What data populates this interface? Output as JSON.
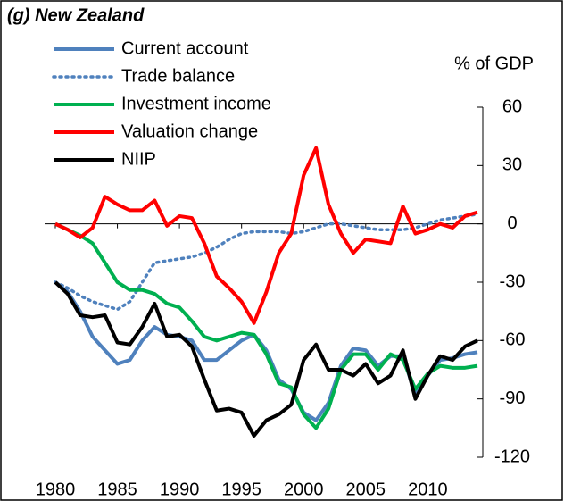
{
  "chart_data": {
    "type": "line",
    "title": "(g) New Zealand",
    "y_label": "% of GDP",
    "x": [
      1980,
      1981,
      1982,
      1983,
      1984,
      1985,
      1986,
      1987,
      1988,
      1989,
      1990,
      1991,
      1992,
      1993,
      1994,
      1995,
      1996,
      1997,
      1998,
      1999,
      2000,
      2001,
      2002,
      2003,
      2004,
      2005,
      2006,
      2007,
      2008,
      2009,
      2010,
      2011,
      2012,
      2013,
      2014
    ],
    "xlim": [
      1980,
      2014
    ],
    "xticks": [
      1980,
      1985,
      1990,
      1995,
      2000,
      2005,
      2010
    ],
    "ylim": [
      -120,
      60
    ],
    "yticks": [
      60,
      30,
      0,
      -30,
      -60,
      -90,
      -120
    ],
    "legend": "upper left",
    "series": [
      {
        "name": "Current account",
        "color": "#4f81bd",
        "style": "solid",
        "values": [
          -30,
          -35,
          -45,
          -58,
          -65,
          -72,
          -70,
          -60,
          -53,
          -57,
          -58,
          -60,
          -70,
          -70,
          -65,
          -60,
          -57,
          -65,
          -80,
          -85,
          -97,
          -101,
          -92,
          -73,
          -64,
          -65,
          -73,
          -68,
          -68,
          -88,
          -78,
          -70,
          -69,
          -67,
          -66
        ]
      },
      {
        "name": "Trade balance",
        "color": "#4f81bd",
        "style": "dotted",
        "values": [
          -30,
          -33,
          -37,
          -40,
          -42,
          -44,
          -40,
          -30,
          -20,
          -19,
          -18,
          -17,
          -15,
          -12,
          -8,
          -5,
          -4,
          -4,
          -4,
          -5,
          -4,
          -2,
          0,
          0,
          -1,
          -2,
          -3,
          -3,
          -3,
          -2,
          0,
          2,
          3,
          4,
          5
        ]
      },
      {
        "name": "Investment income",
        "color": "#00b050",
        "style": "solid",
        "values": [
          0,
          -3,
          -6,
          -10,
          -20,
          -30,
          -34,
          -34,
          -36,
          -41,
          -43,
          -50,
          -58,
          -60,
          -58,
          -56,
          -57,
          -67,
          -82,
          -84,
          -98,
          -105,
          -95,
          -75,
          -67,
          -67,
          -75,
          -67,
          -70,
          -85,
          -77,
          -73,
          -74,
          -74,
          -73
        ]
      },
      {
        "name": "Valuation change",
        "color": "#ff0000",
        "style": "solid",
        "values": [
          0,
          -3,
          -7,
          -2,
          14,
          10,
          7,
          7,
          12,
          -1,
          4,
          3,
          -10,
          -27,
          -33,
          -40,
          -51,
          -35,
          -15,
          -5,
          25,
          39,
          10,
          -5,
          -15,
          -8,
          -9,
          -10,
          9,
          -5,
          -3,
          0,
          -2,
          4,
          6
        ]
      },
      {
        "name": "NIIP",
        "color": "#000000",
        "style": "solid",
        "values": [
          -30,
          -36,
          -47,
          -48,
          -47,
          -61,
          -62,
          -53,
          -41,
          -58,
          -57,
          -63,
          -80,
          -96,
          -95,
          -97,
          -109,
          -101,
          -98,
          -93,
          -70,
          -62,
          -75,
          -75,
          -78,
          -72,
          -82,
          -78,
          -65,
          -90,
          -78,
          -68,
          -70,
          -63,
          -60
        ]
      }
    ]
  }
}
